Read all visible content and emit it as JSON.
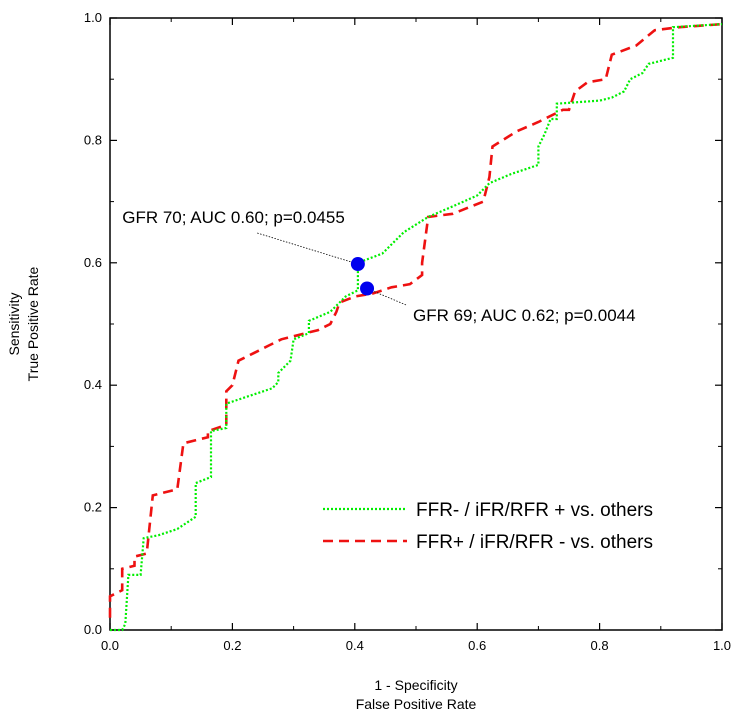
{
  "chart_data": {
    "type": "line",
    "title": "",
    "xlabel_lines": [
      "1 - Specificity",
      "False Positive Rate"
    ],
    "ylabel_lines": [
      "Sensitivity",
      "True Positive Rate"
    ],
    "xlim": [
      0,
      1
    ],
    "ylim": [
      0,
      1
    ],
    "xticks": [
      "0.0",
      "0.2",
      "0.4",
      "0.6",
      "0.8",
      "1.0"
    ],
    "yticks": [
      "0.0",
      "0.2",
      "0.4",
      "0.6",
      "0.8",
      "1.0"
    ],
    "grid": false,
    "legend_position": "bottom-right",
    "series": [
      {
        "name": "FFR- / iFR/RFR + vs. others",
        "color": "#00ee00",
        "style": "dotted",
        "points": [
          [
            0.0,
            0.0
          ],
          [
            0.02,
            0.0
          ],
          [
            0.025,
            0.01
          ],
          [
            0.03,
            0.09
          ],
          [
            0.05,
            0.09
          ],
          [
            0.055,
            0.15
          ],
          [
            0.08,
            0.155
          ],
          [
            0.11,
            0.165
          ],
          [
            0.14,
            0.185
          ],
          [
            0.14,
            0.24
          ],
          [
            0.165,
            0.25
          ],
          [
            0.165,
            0.325
          ],
          [
            0.19,
            0.33
          ],
          [
            0.19,
            0.37
          ],
          [
            0.265,
            0.395
          ],
          [
            0.275,
            0.405
          ],
          [
            0.275,
            0.42
          ],
          [
            0.295,
            0.44
          ],
          [
            0.3,
            0.475
          ],
          [
            0.325,
            0.485
          ],
          [
            0.325,
            0.505
          ],
          [
            0.36,
            0.52
          ],
          [
            0.385,
            0.545
          ],
          [
            0.405,
            0.555
          ],
          [
            0.405,
            0.6
          ],
          [
            0.445,
            0.615
          ],
          [
            0.48,
            0.65
          ],
          [
            0.52,
            0.675
          ],
          [
            0.555,
            0.69
          ],
          [
            0.6,
            0.71
          ],
          [
            0.62,
            0.73
          ],
          [
            0.655,
            0.745
          ],
          [
            0.7,
            0.76
          ],
          [
            0.7,
            0.79
          ],
          [
            0.71,
            0.81
          ],
          [
            0.72,
            0.835
          ],
          [
            0.73,
            0.835
          ],
          [
            0.73,
            0.86
          ],
          [
            0.8,
            0.865
          ],
          [
            0.82,
            0.87
          ],
          [
            0.84,
            0.88
          ],
          [
            0.85,
            0.9
          ],
          [
            0.87,
            0.91
          ],
          [
            0.88,
            0.925
          ],
          [
            0.92,
            0.935
          ],
          [
            0.92,
            0.985
          ],
          [
            1.0,
            0.99
          ]
        ]
      },
      {
        "name": "FFR+ / iFR/RFR - vs. others",
        "color": "#ee1111",
        "style": "dashed",
        "points": [
          [
            0.0,
            0.02
          ],
          [
            0.0,
            0.055
          ],
          [
            0.02,
            0.065
          ],
          [
            0.02,
            0.1
          ],
          [
            0.04,
            0.105
          ],
          [
            0.04,
            0.12
          ],
          [
            0.06,
            0.125
          ],
          [
            0.07,
            0.22
          ],
          [
            0.11,
            0.23
          ],
          [
            0.12,
            0.305
          ],
          [
            0.16,
            0.315
          ],
          [
            0.16,
            0.325
          ],
          [
            0.19,
            0.335
          ],
          [
            0.19,
            0.39
          ],
          [
            0.2,
            0.4
          ],
          [
            0.21,
            0.44
          ],
          [
            0.23,
            0.45
          ],
          [
            0.26,
            0.465
          ],
          [
            0.28,
            0.475
          ],
          [
            0.32,
            0.485
          ],
          [
            0.34,
            0.49
          ],
          [
            0.36,
            0.5
          ],
          [
            0.37,
            0.52
          ],
          [
            0.375,
            0.535
          ],
          [
            0.4,
            0.545
          ],
          [
            0.43,
            0.55
          ],
          [
            0.46,
            0.56
          ],
          [
            0.49,
            0.565
          ],
          [
            0.51,
            0.58
          ],
          [
            0.51,
            0.6
          ],
          [
            0.52,
            0.675
          ],
          [
            0.56,
            0.68
          ],
          [
            0.61,
            0.7
          ],
          [
            0.62,
            0.74
          ],
          [
            0.625,
            0.79
          ],
          [
            0.665,
            0.815
          ],
          [
            0.7,
            0.83
          ],
          [
            0.74,
            0.85
          ],
          [
            0.75,
            0.85
          ],
          [
            0.76,
            0.88
          ],
          [
            0.78,
            0.895
          ],
          [
            0.81,
            0.9
          ],
          [
            0.82,
            0.94
          ],
          [
            0.86,
            0.955
          ],
          [
            0.89,
            0.98
          ],
          [
            0.93,
            0.985
          ],
          [
            1.0,
            0.99
          ]
        ]
      }
    ],
    "markers": [
      {
        "x": 0.405,
        "y": 0.598,
        "color": "#0000ee",
        "label": "GFR 70; AUC 0.60; p=0.0455",
        "label_anchor": [
          0.02,
          0.665
        ]
      },
      {
        "x": 0.42,
        "y": 0.558,
        "color": "#0000ee",
        "label": "GFR 69; AUC 0.62; p=0.0044",
        "label_anchor": [
          0.5,
          0.505
        ]
      }
    ]
  }
}
